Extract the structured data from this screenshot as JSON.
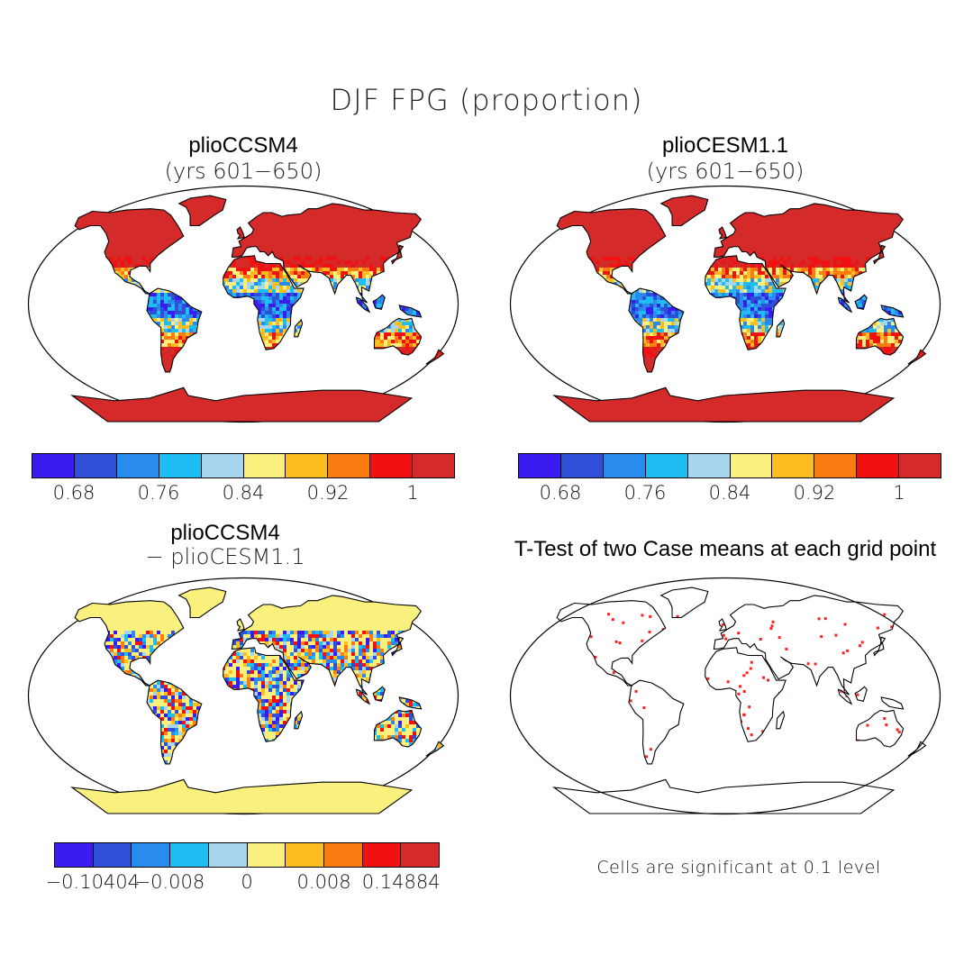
{
  "title": "DJF FPG (proportion)",
  "panels": {
    "top_left": {
      "title": "plioCCSM4",
      "subtitle": "(yrs 601−650)"
    },
    "top_right": {
      "title": "plioCESM1.1",
      "subtitle": "(yrs 601−650)"
    },
    "bottom_left": {
      "title": "plioCCSM4",
      "subtitle": "− plioCESM1.1"
    },
    "bottom_right": {
      "title": "T-Test of two Case means at each grid point",
      "note": "Cells are significant at 0.1 level"
    }
  },
  "colorbars": {
    "top": {
      "colors": [
        "#3a1cf2",
        "#2f4fd9",
        "#2a8bef",
        "#1fbef2",
        "#a8d6ee",
        "#faf07e",
        "#fbbd1f",
        "#fb7c10",
        "#f21111",
        "#d42a2a"
      ],
      "labels": [
        "0.68",
        "0.76",
        "0.84",
        "0.92",
        "1"
      ]
    },
    "diff": {
      "colors": [
        "#3a1cf2",
        "#2f4fd9",
        "#2a8bef",
        "#1fbef2",
        "#a8d6ee",
        "#faf07e",
        "#fbbd1f",
        "#fb7c10",
        "#f21111",
        "#d42a2a"
      ],
      "labels": [
        "−0.10404",
        "−0.008",
        "0",
        "0.008",
        "0.14884"
      ]
    }
  },
  "significance_color": "#ff2020"
}
